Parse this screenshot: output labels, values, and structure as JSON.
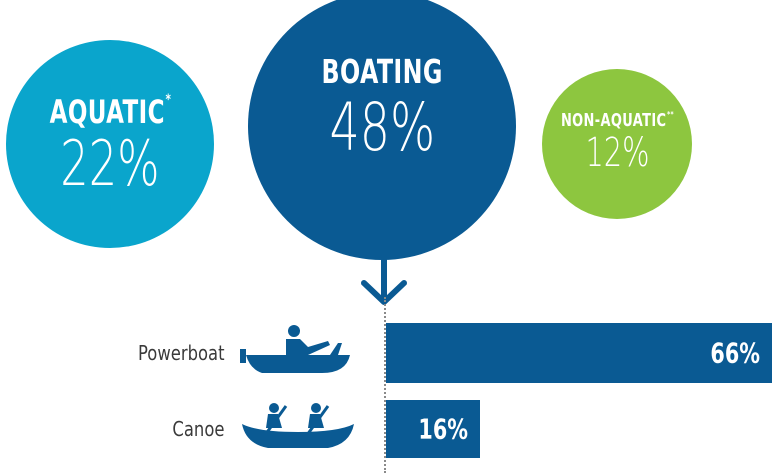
{
  "colors": {
    "aquatic": "#0aa5cc",
    "boating": "#0a5a93",
    "non_aquatic": "#8dc63f",
    "bar": "#0a5a93"
  },
  "circles": {
    "aquatic": {
      "title": "AQUATIC",
      "marker": "*",
      "value": "22%"
    },
    "boating": {
      "title": "BOATING",
      "value": "48%"
    },
    "non_aquatic": {
      "title": "NON-AQUATIC",
      "marker": "**",
      "value": "12%"
    }
  },
  "icons": {
    "powerboat": "powerboat-icon",
    "canoe": "canoe-icon",
    "arrow": "arrow-down-icon"
  },
  "chart_data": {
    "type": "bar",
    "categories": [
      "Powerboat",
      "Canoe"
    ],
    "values": [
      66,
      16
    ],
    "value_labels": [
      "66%",
      "16%"
    ],
    "xlim": [
      0,
      66
    ],
    "summary": [
      {
        "label": "AQUATIC*",
        "value": 22
      },
      {
        "label": "BOATING",
        "value": 48
      },
      {
        "label": "NON-AQUATIC**",
        "value": 12
      }
    ]
  }
}
